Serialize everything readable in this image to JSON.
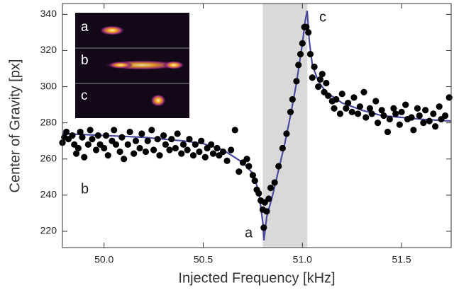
{
  "chart_data": {
    "type": "scatter",
    "xlabel": "Injected Frequency [kHz]",
    "ylabel": "Center of Gravity [px]",
    "color": "#000000",
    "x": [
      49.79,
      49.8,
      49.81,
      49.82,
      49.84,
      49.85,
      49.86,
      49.87,
      49.88,
      49.89,
      49.9,
      49.92,
      49.93,
      49.94,
      49.96,
      49.97,
      49.98,
      50.0,
      50.01,
      50.02,
      50.04,
      50.05,
      50.06,
      50.08,
      50.09,
      50.1,
      50.12,
      50.13,
      50.15,
      50.16,
      50.18,
      50.19,
      50.21,
      50.22,
      50.24,
      50.25,
      50.27,
      50.28,
      50.3,
      50.31,
      50.33,
      50.34,
      50.36,
      50.37,
      50.39,
      50.4,
      50.42,
      50.43,
      50.45,
      50.46,
      50.48,
      50.49,
      50.51,
      50.52,
      50.54,
      50.55,
      50.57,
      50.58,
      50.6,
      50.62,
      50.64,
      50.66,
      50.68,
      50.7,
      50.72,
      50.73,
      50.75,
      50.76,
      50.77,
      50.78,
      50.79,
      50.8,
      50.805,
      50.81,
      50.82,
      50.83,
      50.84,
      50.86,
      50.88,
      50.9,
      50.92,
      50.94,
      50.95,
      50.97,
      50.98,
      50.99,
      51.0,
      51.01,
      51.02,
      51.03,
      51.04,
      51.05,
      51.06,
      51.08,
      51.09,
      51.1,
      51.11,
      51.12,
      51.13,
      51.15,
      51.16,
      51.17,
      51.19,
      51.2,
      51.22,
      51.23,
      51.25,
      51.26,
      51.28,
      51.29,
      51.31,
      51.32,
      51.34,
      51.35,
      51.37,
      51.38,
      51.4,
      51.41,
      51.43,
      51.44,
      51.46,
      51.47,
      51.49,
      51.5,
      51.52,
      51.53,
      51.55,
      51.56,
      51.58,
      51.59,
      51.61,
      51.62,
      51.64,
      51.66,
      51.67,
      51.69,
      51.7,
      51.72,
      51.74
    ],
    "values": [
      269,
      272,
      275,
      271,
      273,
      268,
      263,
      266,
      275,
      272,
      261,
      268,
      276,
      271,
      265,
      273,
      268,
      266,
      273,
      262,
      270,
      276,
      268,
      264,
      272,
      260,
      268,
      275,
      263,
      270,
      266,
      274,
      264,
      270,
      276,
      265,
      271,
      262,
      273,
      268,
      265,
      271,
      266,
      274,
      263,
      268,
      265,
      271,
      262,
      268,
      264,
      270,
      261,
      266,
      268,
      263,
      266,
      262,
      264,
      259,
      265,
      276,
      253,
      258,
      260,
      256,
      251,
      248,
      243,
      241,
      237,
      232,
      222,
      236,
      231,
      238,
      244,
      247,
      256,
      266,
      274,
      286,
      293,
      303,
      312,
      318,
      324,
      333,
      333,
      330,
      318,
      305,
      311,
      300,
      304,
      307,
      297,
      302,
      295,
      292,
      288,
      293,
      285,
      296,
      288,
      291,
      286,
      294,
      285,
      289,
      297,
      283,
      288,
      285,
      292,
      280,
      287,
      284,
      275,
      282,
      288,
      285,
      279,
      286,
      290,
      282,
      283,
      276,
      288,
      284,
      280,
      287,
      281,
      285,
      278,
      289,
      282,
      284,
      294
    ],
    "fit": {
      "color": "#4a4a9e",
      "x": [
        49.79,
        49.9,
        50.0,
        50.1,
        50.2,
        50.3,
        50.4,
        50.5,
        50.6,
        50.7,
        50.75,
        50.78,
        50.8,
        50.806,
        50.82,
        50.85,
        50.88,
        50.91,
        50.94,
        50.97,
        51.0,
        51.015,
        51.024,
        51.035,
        51.05,
        51.08,
        51.12,
        51.2,
        51.3,
        51.4,
        51.5,
        51.6,
        51.75
      ],
      "values": [
        274,
        273.5,
        273,
        272.5,
        272,
        271,
        270,
        268.5,
        265,
        258,
        252,
        242,
        225,
        215,
        228,
        240,
        254,
        268,
        284,
        302,
        324,
        337,
        342,
        325,
        312,
        303,
        297,
        291,
        287,
        284,
        283,
        282,
        281
      ]
    },
    "shaded_region": [
      50.8,
      51.025
    ],
    "shade_color": "#d9d9d9",
    "xlim": [
      49.79,
      51.75
    ],
    "ylim": [
      211,
      346
    ],
    "xticks": [
      {
        "value": 50,
        "label": "50.0"
      },
      {
        "value": 50.5,
        "label": "50.5"
      },
      {
        "value": 51,
        "label": "51.0"
      },
      {
        "value": 51.5,
        "label": "51.5"
      }
    ],
    "yticks": [
      220,
      240,
      260,
      280,
      300,
      320,
      340
    ],
    "annotations": [
      "a",
      "b",
      "c"
    ],
    "inset_labels": [
      "a",
      "b",
      "c"
    ]
  }
}
